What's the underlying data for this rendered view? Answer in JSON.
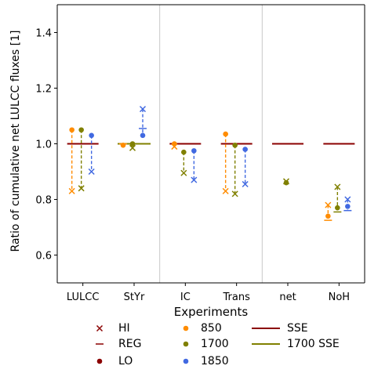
{
  "chart_data": {
    "type": "scatter",
    "title": "",
    "xlabel": "Experiments",
    "ylabel": "Ratio of cumulative net LULCC fluxes [1]",
    "categories": [
      "LULCC",
      "StYr",
      "IC",
      "Trans",
      "net",
      "NoH"
    ],
    "ylim": [
      0.5,
      1.5
    ],
    "yticks": [
      0.6,
      0.8,
      1.0,
      1.2,
      1.4
    ],
    "ytick_labels": [
      "0.6",
      "0.8",
      "1.0",
      "1.2",
      "1.4"
    ],
    "grid": false,
    "group_separators_after": [
      "StYr",
      "Trans"
    ],
    "colors": {
      "850": "#ff8c00",
      "1700": "#808000",
      "1850": "#4169e1",
      "SSE": "#8b0000",
      "1700 SSE": "#808000"
    },
    "series": [
      {
        "name": "850",
        "points": {
          "LULCC": {
            "HI": 0.83,
            "LO": 1.05
          },
          "StYr": {
            "REG": 1.0,
            "LO": 0.995
          },
          "IC": {
            "HI": 0.99,
            "LO": 1.0
          },
          "Trans": {
            "HI": 0.83,
            "LO": 1.035
          },
          "NoH": {
            "HI": 0.78,
            "REG": 0.725,
            "LO": 0.74
          }
        }
      },
      {
        "name": "1700",
        "points": {
          "LULCC": {
            "HI": 0.84,
            "LO": 1.05
          },
          "StYr": {
            "HI": 0.985,
            "REG": 1.0,
            "LO": 1.0
          },
          "IC": {
            "HI": 0.895,
            "LO": 0.97
          },
          "Trans": {
            "HI": 0.82,
            "LO": 0.995
          },
          "net": {
            "HI": 0.865,
            "LO": 0.86
          },
          "NoH": {
            "HI": 0.845,
            "REG": 0.755,
            "LO": 0.77
          }
        }
      },
      {
        "name": "1850",
        "points": {
          "LULCC": {
            "HI": 0.9,
            "LO": 1.03
          },
          "StYr": {
            "HI": 1.125,
            "REG": 1.055,
            "LO": 1.03
          },
          "IC": {
            "HI": 0.87,
            "LO": 0.975
          },
          "Trans": {
            "HI": 0.855,
            "LO": 0.98
          },
          "NoH": {
            "HI": 0.8,
            "REG": 0.76,
            "LO": 0.775
          }
        }
      }
    ],
    "sse": {
      "LULCC": 1.0,
      "StYr": 1.0,
      "IC": 1.0,
      "Trans": 1.0,
      "net": 1.0,
      "NoH": 1.0
    },
    "sse_1700": {
      "StYr": 1.0
    },
    "legend": {
      "placement": "bottom",
      "markers": [
        {
          "label": "HI",
          "symbol": "x"
        },
        {
          "label": "REG",
          "symbol": "dash"
        },
        {
          "label": "LO",
          "symbol": "dot"
        }
      ],
      "colors": [
        {
          "label": "850",
          "series": "850"
        },
        {
          "label": "1700",
          "series": "1700"
        },
        {
          "label": "1850",
          "series": "1850"
        }
      ],
      "lines": [
        {
          "label": "SSE",
          "key": "SSE"
        },
        {
          "label": "1700 SSE",
          "key": "1700 SSE"
        }
      ]
    }
  }
}
